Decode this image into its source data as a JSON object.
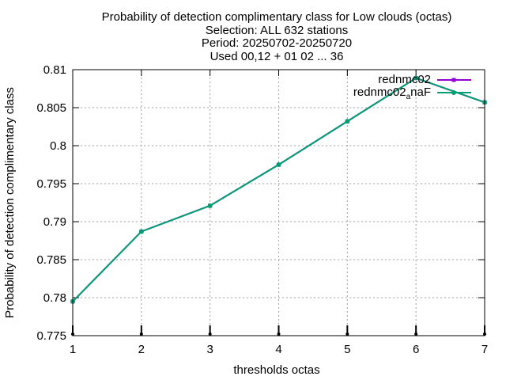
{
  "chart_data": {
    "type": "line",
    "title_lines": [
      "Probability of detection complimentary class  for Low clouds (octas)",
      "Selection: ALL    632 stations",
      "Period: 20250702-20250720",
      "Used 00,12 + 01 02 ... 36"
    ],
    "xlabel": "thresholds octas",
    "ylabel": "Probability of detection complimentary class",
    "xlim": [
      1,
      7
    ],
    "ylim": [
      0.775,
      0.81
    ],
    "x_ticks": [
      "1",
      "2",
      "3",
      "4",
      "5",
      "6",
      "7"
    ],
    "y_ticks": [
      "0.775",
      "0.78",
      "0.785",
      "0.79",
      "0.795",
      "0.8",
      "0.805",
      "0.81"
    ],
    "grid": true,
    "legend_position": "top-right",
    "x": [
      1,
      2,
      3,
      4,
      5,
      6,
      7
    ],
    "series": [
      {
        "name": "rednmc02",
        "color": "#9400d3",
        "marker": "square",
        "values": [
          0.7795,
          0.7887,
          0.7921,
          0.7975,
          0.8032,
          0.8089,
          0.8057
        ]
      },
      {
        "name_main": "rednmc02",
        "name_sub": "a",
        "name_tail": "naF",
        "color": "#009e73",
        "marker": "circle",
        "values": [
          0.7795,
          0.7887,
          0.7921,
          0.7975,
          0.8032,
          0.8089,
          0.8057
        ]
      }
    ],
    "bottom_marks_color": "#000000"
  }
}
